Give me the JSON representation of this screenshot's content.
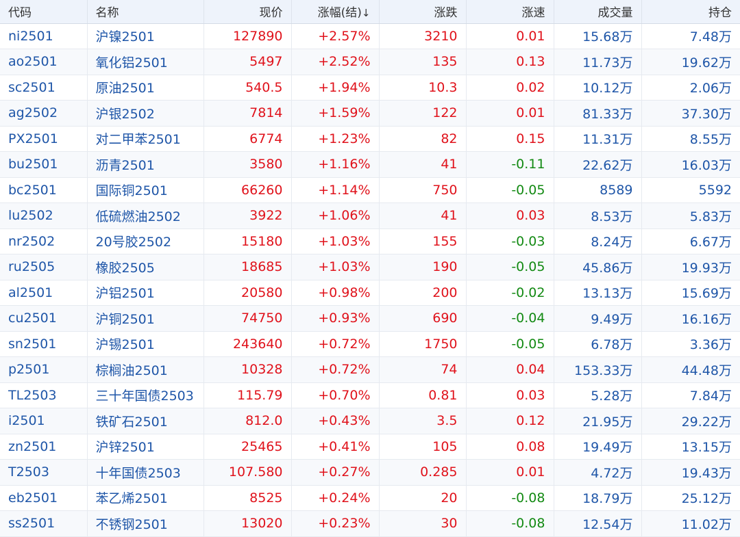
{
  "colors": {
    "up": "#e0121b",
    "down": "#138a13",
    "text_blue": "#1f56a8",
    "header_bg": "#eef3fb"
  },
  "header": {
    "code": "代码",
    "name": "名称",
    "price": "现价",
    "change_pct": "涨幅(结)",
    "sort_icon": "↓",
    "change": "涨跌",
    "speed": "涨速",
    "volume": "成交量",
    "open_interest": "持仓"
  },
  "rows": [
    {
      "code": "ni2501",
      "name": "沪镍2501",
      "price": "127890",
      "pct": "+2.57%",
      "chg": "3210",
      "speed": "0.01",
      "vol": "15.68万",
      "oi": "7.48万"
    },
    {
      "code": "ao2501",
      "name": "氧化铝2501",
      "price": "5497",
      "pct": "+2.52%",
      "chg": "135",
      "speed": "0.13",
      "vol": "11.73万",
      "oi": "19.62万"
    },
    {
      "code": "sc2501",
      "name": "原油2501",
      "price": "540.5",
      "pct": "+1.94%",
      "chg": "10.3",
      "speed": "0.02",
      "vol": "10.12万",
      "oi": "2.06万"
    },
    {
      "code": "ag2502",
      "name": "沪银2502",
      "price": "7814",
      "pct": "+1.59%",
      "chg": "122",
      "speed": "0.01",
      "vol": "81.33万",
      "oi": "37.30万"
    },
    {
      "code": "PX2501",
      "name": "对二甲苯2501",
      "price": "6774",
      "pct": "+1.23%",
      "chg": "82",
      "speed": "0.15",
      "vol": "11.31万",
      "oi": "8.55万"
    },
    {
      "code": "bu2501",
      "name": "沥青2501",
      "price": "3580",
      "pct": "+1.16%",
      "chg": "41",
      "speed": "-0.11",
      "vol": "22.62万",
      "oi": "16.03万"
    },
    {
      "code": "bc2501",
      "name": "国际铜2501",
      "price": "66260",
      "pct": "+1.14%",
      "chg": "750",
      "speed": "-0.05",
      "vol": "8589",
      "oi": "5592"
    },
    {
      "code": "lu2502",
      "name": "低硫燃油2502",
      "price": "3922",
      "pct": "+1.06%",
      "chg": "41",
      "speed": "0.03",
      "vol": "8.53万",
      "oi": "5.83万"
    },
    {
      "code": "nr2502",
      "name": "20号胶2502",
      "price": "15180",
      "pct": "+1.03%",
      "chg": "155",
      "speed": "-0.03",
      "vol": "8.24万",
      "oi": "6.67万"
    },
    {
      "code": "ru2505",
      "name": "橡胶2505",
      "price": "18685",
      "pct": "+1.03%",
      "chg": "190",
      "speed": "-0.05",
      "vol": "45.86万",
      "oi": "19.93万"
    },
    {
      "code": "al2501",
      "name": "沪铝2501",
      "price": "20580",
      "pct": "+0.98%",
      "chg": "200",
      "speed": "-0.02",
      "vol": "13.13万",
      "oi": "15.69万"
    },
    {
      "code": "cu2501",
      "name": "沪铜2501",
      "price": "74750",
      "pct": "+0.93%",
      "chg": "690",
      "speed": "-0.04",
      "vol": "9.49万",
      "oi": "16.16万"
    },
    {
      "code": "sn2501",
      "name": "沪锡2501",
      "price": "243640",
      "pct": "+0.72%",
      "chg": "1750",
      "speed": "-0.05",
      "vol": "6.78万",
      "oi": "3.36万"
    },
    {
      "code": "p2501",
      "name": "棕榈油2501",
      "price": "10328",
      "pct": "+0.72%",
      "chg": "74",
      "speed": "0.04",
      "vol": "153.33万",
      "oi": "44.48万"
    },
    {
      "code": "TL2503",
      "name": "三十年国债2503",
      "price": "115.79",
      "pct": "+0.70%",
      "chg": "0.81",
      "speed": "0.03",
      "vol": "5.28万",
      "oi": "7.84万"
    },
    {
      "code": "i2501",
      "name": "铁矿石2501",
      "price": "812.0",
      "pct": "+0.43%",
      "chg": "3.5",
      "speed": "0.12",
      "vol": "21.95万",
      "oi": "29.22万"
    },
    {
      "code": "zn2501",
      "name": "沪锌2501",
      "price": "25465",
      "pct": "+0.41%",
      "chg": "105",
      "speed": "0.08",
      "vol": "19.49万",
      "oi": "13.15万"
    },
    {
      "code": "T2503",
      "name": "十年国债2503",
      "price": "107.580",
      "pct": "+0.27%",
      "chg": "0.285",
      "speed": "0.01",
      "vol": "4.72万",
      "oi": "19.43万"
    },
    {
      "code": "eb2501",
      "name": "苯乙烯2501",
      "price": "8525",
      "pct": "+0.24%",
      "chg": "20",
      "speed": "-0.08",
      "vol": "18.79万",
      "oi": "25.12万"
    },
    {
      "code": "ss2501",
      "name": "不锈钢2501",
      "price": "13020",
      "pct": "+0.23%",
      "chg": "30",
      "speed": "-0.08",
      "vol": "12.54万",
      "oi": "11.02万"
    }
  ]
}
